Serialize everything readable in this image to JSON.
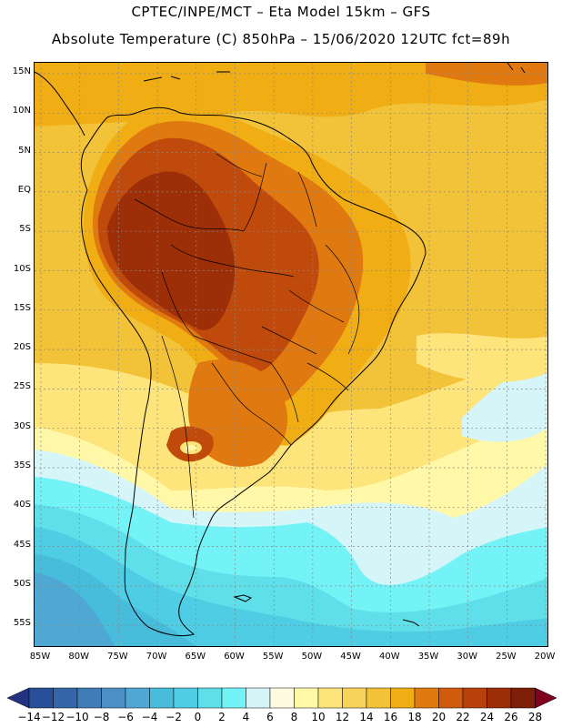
{
  "header": {
    "line1": "CPTEC/INPE/MCT –  Eta Model 15km – GFS",
    "line2": "Absolute Temperature (C) 850hPa – 15/06/2020 12UTC fct=89h"
  },
  "map": {
    "lat_labels": [
      "15N",
      "10N",
      "5N",
      "EQ",
      "5S",
      "10S",
      "15S",
      "20S",
      "25S",
      "30S",
      "35S",
      "40S",
      "45S",
      "50S",
      "55S"
    ],
    "lon_labels": [
      "85W",
      "80W",
      "75W",
      "70W",
      "65W",
      "60W",
      "55W",
      "50W",
      "45W",
      "40W",
      "35W",
      "30W",
      "25W",
      "20W"
    ]
  },
  "colorbar": {
    "labels": [
      "-14",
      "-12",
      "-10",
      "-8",
      "-6",
      "-4",
      "-2",
      "0",
      "2",
      "4",
      "6",
      "8",
      "10",
      "12",
      "14",
      "16",
      "18",
      "20",
      "22",
      "24",
      "26",
      "28"
    ],
    "colors": [
      "#2a4f9a",
      "#3465a8",
      "#3f7cb8",
      "#4a90c6",
      "#4fa8d4",
      "#47bcdb",
      "#4fcde4",
      "#5fdfea",
      "#73f3f5",
      "#d5f5f8",
      "#fffbe0",
      "#fff8a8",
      "#fde57c",
      "#f8d35a",
      "#f2c238",
      "#f0ae14",
      "#e07a10",
      "#d05a0e",
      "#b8400a",
      "#9c2e08",
      "#7e1e08"
    ],
    "end_low_color": "#23337f",
    "end_high_color": "#800020"
  },
  "field_colors": {
    "hot_core": "#9c2e08",
    "hot": "#c04a0c",
    "warm": "#e07a10",
    "mild": "#f0ae14",
    "tropic": "#f2c238",
    "pale": "#fde57c",
    "cream": "#fff8a8",
    "ice": "#d5f5f8",
    "cyan": "#73f3f5",
    "blue1": "#5fdfea",
    "blue2": "#4fcde4",
    "blue3": "#47bcdb",
    "blue4": "#4fa8d4"
  }
}
